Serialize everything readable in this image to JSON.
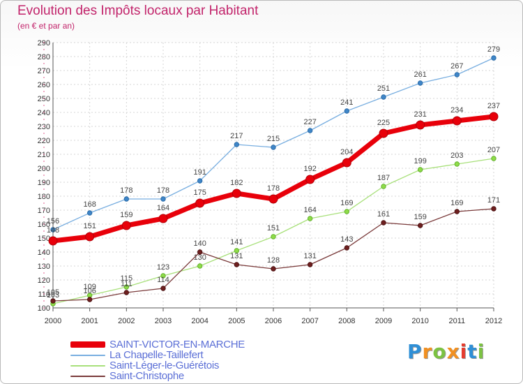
{
  "chart_data": {
    "type": "line",
    "title": "Evolution des Impôts locaux par Habitant",
    "subtitle": "(en € et par an)",
    "xlabel": "",
    "ylabel": "",
    "x": [
      "2000",
      "2001",
      "2002",
      "2003",
      "2004",
      "2005",
      "2006",
      "2007",
      "2008",
      "2009",
      "2010",
      "2011",
      "2012"
    ],
    "ylim": [
      100,
      290
    ],
    "yticks": [
      100,
      110,
      120,
      130,
      140,
      150,
      160,
      170,
      180,
      190,
      200,
      210,
      220,
      230,
      240,
      250,
      260,
      270,
      280,
      290
    ],
    "grid": true,
    "legend_position": "bottom-left",
    "series": [
      {
        "name": "La Chapelle-Taillefert",
        "color": "#3f86c8",
        "values": [
          156,
          168,
          178,
          178,
          191,
          217,
          215,
          227,
          241,
          251,
          261,
          267,
          279
        ]
      },
      {
        "name": "Saint-Léger-le-Guérétois",
        "color": "#8fdc49",
        "values": [
          103,
          109,
          115,
          123,
          130,
          141,
          151,
          164,
          169,
          187,
          199,
          203,
          207
        ]
      },
      {
        "name": "Saint-Christophe",
        "color": "#6e1f1f",
        "values": [
          105,
          106,
          111,
          114,
          140,
          131,
          128,
          131,
          143,
          161,
          159,
          169,
          171
        ]
      },
      {
        "name": "SAINT-VICTOR-EN-MARCHE",
        "color": "#e8000a",
        "values": [
          148,
          151,
          159,
          164,
          175,
          182,
          178,
          192,
          204,
          225,
          231,
          234,
          237
        ]
      }
    ]
  },
  "legend": [
    {
      "label": "SAINT-VICTOR-EN-MARCHE",
      "color": "#e8000a"
    },
    {
      "label": "La Chapelle-Taillefert",
      "color": "#78aee0"
    },
    {
      "label": "Saint-Léger-le-Guérétois",
      "color": "#a8e07a"
    },
    {
      "label": "Saint-Christophe",
      "color": "#7a3a3a"
    }
  ],
  "logo": {
    "letters": [
      "P",
      "r",
      "o",
      "x",
      "i",
      "t",
      "i"
    ],
    "colors": [
      "#2f8fd6",
      "#f19021",
      "#7cc242",
      "#f19021",
      "#e53c2e",
      "#2f8fd6",
      "#7cc242"
    ]
  }
}
